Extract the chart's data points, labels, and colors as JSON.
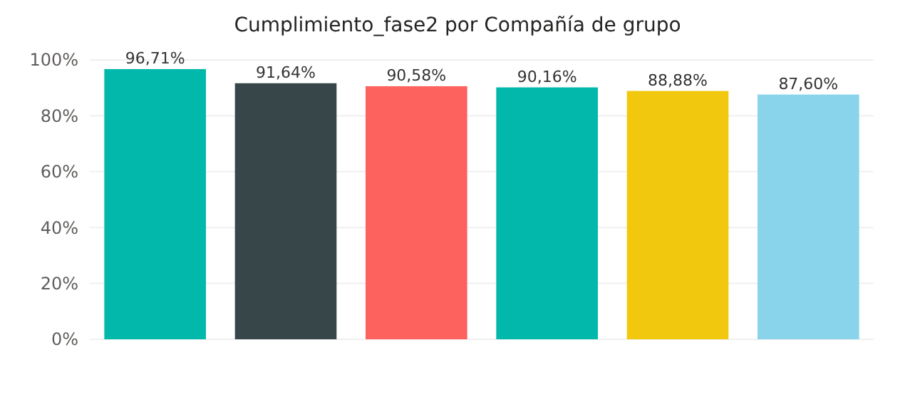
{
  "chart_data": {
    "type": "bar",
    "title": "Cumplimiento_fase2 por Compañía de grupo",
    "categories": [
      null,
      null,
      null,
      null,
      null,
      null
    ],
    "values": [
      96.71,
      91.64,
      90.58,
      90.16,
      88.88,
      87.6
    ],
    "colors": [
      "#01b8aa",
      "#374649",
      "#fd625e",
      "#01b8aa",
      "#f2c80f",
      "#8ad4eb"
    ],
    "value_labels": [
      "96,71%",
      "91,64%",
      "90,58%",
      "90,16%",
      "88,88%",
      "87,60%"
    ],
    "ylim": [
      0,
      100
    ],
    "yticks": [
      {
        "value": 0,
        "label": "0%"
      },
      {
        "value": 20,
        "label": "20%"
      },
      {
        "value": 40,
        "label": "40%"
      },
      {
        "value": 60,
        "label": "60%"
      },
      {
        "value": 80,
        "label": "80%"
      },
      {
        "value": 100,
        "label": "100%"
      }
    ],
    "grid": "y"
  }
}
